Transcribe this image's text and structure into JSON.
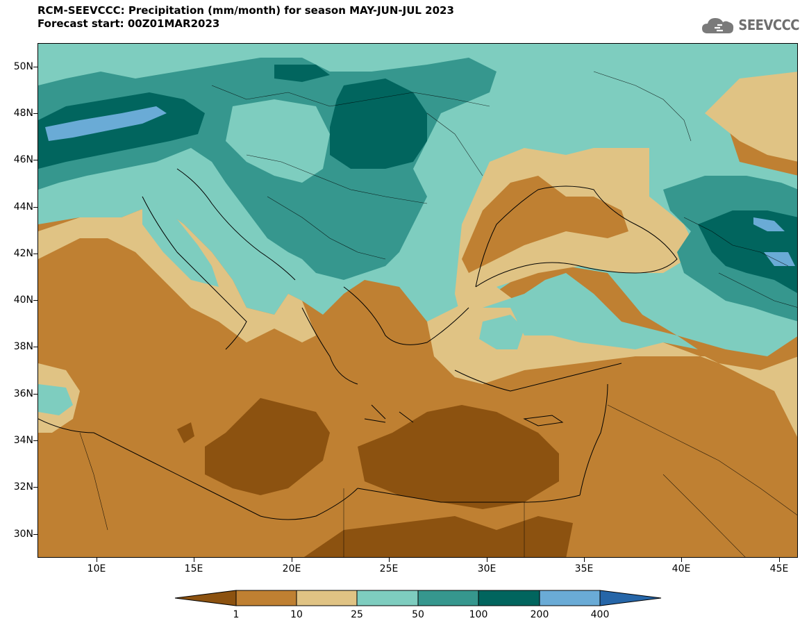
{
  "title": {
    "line1": "RCM-SEEVCCC: Precipitation (mm/month) for season MAY-JUN-JUL 2023",
    "line2": "Forecast start: 00Z01MAR2023"
  },
  "logo": {
    "text": "SEEVCCC",
    "icon": "cloud-icon"
  },
  "map": {
    "lon_range": [
      7,
      46
    ],
    "lat_range": [
      29,
      51
    ],
    "lat_labels": [
      "50N",
      "48N",
      "46N",
      "44N",
      "42N",
      "40N",
      "38N",
      "36N",
      "34N",
      "32N",
      "30N"
    ],
    "lon_labels": [
      "10E",
      "15E",
      "20E",
      "25E",
      "30E",
      "35E",
      "40E",
      "45E"
    ]
  },
  "colorbar": {
    "labels": [
      "1",
      "10",
      "25",
      "50",
      "100",
      "200",
      "400"
    ],
    "colors": [
      "#8c5210",
      "#bf8032",
      "#e0c384",
      "#7ecdbf",
      "#36978e",
      "#01655e",
      "#6aabd6",
      "#2666a8"
    ],
    "units": "mm/month"
  }
}
